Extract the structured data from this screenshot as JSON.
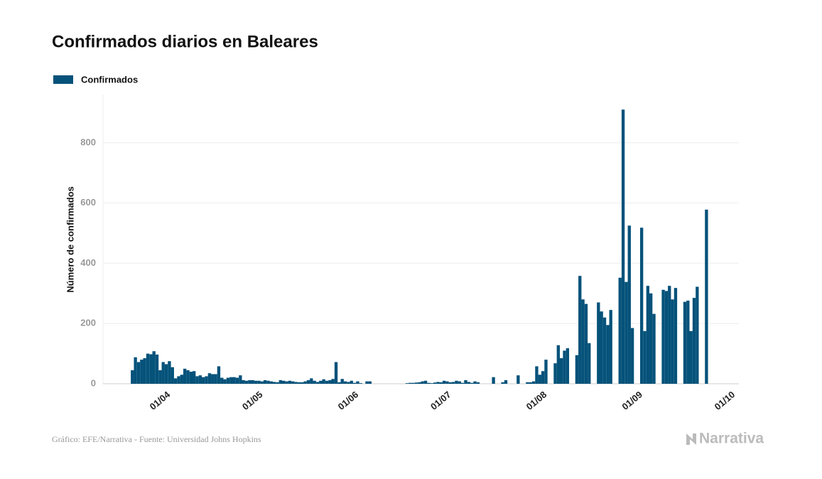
{
  "chart_data": {
    "type": "bar",
    "title": "Confirmados diarios en Baleares",
    "y_label": "Número de confirmados",
    "source": "Gráfico: EFE/Narrativa - Fuente: Universidad Johns Hopkins",
    "brand": "Narrativa",
    "categories": [
      null,
      null,
      null,
      null,
      null,
      null,
      null,
      null,
      null,
      null,
      null,
      null,
      null,
      null,
      null,
      null,
      null,
      null,
      null,
      null,
      "01/04",
      null,
      null,
      null,
      null,
      null,
      null,
      null,
      null,
      null,
      null,
      null,
      null,
      null,
      null,
      null,
      null,
      null,
      null,
      null,
      null,
      null,
      null,
      null,
      null,
      null,
      null,
      null,
      null,
      null,
      "01/05",
      null,
      null,
      null,
      null,
      null,
      null,
      null,
      null,
      null,
      null,
      null,
      null,
      null,
      null,
      null,
      null,
      null,
      null,
      null,
      null,
      null,
      null,
      null,
      null,
      null,
      null,
      null,
      null,
      null,
      null,
      "01/06",
      null,
      null,
      null,
      null,
      null,
      null,
      null,
      null,
      null,
      null,
      null,
      null,
      null,
      null,
      null,
      null,
      null,
      null,
      null,
      null,
      null,
      null,
      null,
      null,
      null,
      null,
      null,
      null,
      null,
      "01/07",
      null,
      null,
      null,
      null,
      null,
      null,
      null,
      null,
      null,
      null,
      null,
      null,
      null,
      null,
      null,
      null,
      null,
      null,
      null,
      null,
      null,
      null,
      null,
      null,
      null,
      null,
      null,
      null,
      null,
      null,
      "01/08",
      null,
      null,
      null,
      null,
      null,
      null,
      null,
      null,
      null,
      null,
      null,
      null,
      null,
      null,
      null,
      null,
      null,
      null,
      null,
      null,
      null,
      null,
      null,
      null,
      null,
      null,
      null,
      null,
      null,
      null,
      "01/09",
      null,
      null,
      null,
      null,
      null,
      null,
      null,
      null,
      null,
      null,
      null,
      null,
      null,
      null,
      null,
      null,
      null,
      null,
      null,
      null,
      null,
      null,
      null,
      null,
      null,
      null,
      null,
      null,
      null,
      "01/10",
      null,
      null
    ],
    "series": [
      {
        "name": "Confirmados",
        "color": "#05527a",
        "values": [
          0,
          0,
          0,
          0,
          0,
          0,
          0,
          0,
          0,
          45,
          88,
          72,
          80,
          85,
          100,
          98,
          108,
          97,
          45,
          72,
          65,
          75,
          55,
          18,
          25,
          30,
          50,
          45,
          40,
          42,
          25,
          28,
          22,
          25,
          35,
          32,
          32,
          58,
          20,
          15,
          20,
          22,
          22,
          20,
          28,
          12,
          10,
          12,
          12,
          10,
          10,
          8,
          12,
          10,
          8,
          6,
          5,
          12,
          10,
          8,
          10,
          8,
          6,
          5,
          5,
          8,
          12,
          18,
          10,
          6,
          10,
          15,
          10,
          12,
          16,
          72,
          5,
          16,
          8,
          6,
          10,
          3,
          8,
          2,
          0,
          8,
          8,
          0,
          0,
          0,
          0,
          0,
          0,
          0,
          0,
          0,
          0,
          0,
          2,
          3,
          3,
          4,
          5,
          8,
          10,
          3,
          2,
          4,
          6,
          5,
          10,
          8,
          5,
          6,
          10,
          8,
          3,
          12,
          6,
          3,
          8,
          5,
          0,
          0,
          0,
          0,
          22,
          0,
          0,
          5,
          12,
          0,
          0,
          0,
          28,
          0,
          0,
          5,
          5,
          8,
          58,
          30,
          42,
          80,
          0,
          0,
          68,
          128,
          85,
          110,
          118,
          0,
          0,
          95,
          358,
          280,
          265,
          135,
          0,
          0,
          270,
          240,
          220,
          195,
          245,
          0,
          0,
          352,
          910,
          338,
          525,
          185,
          0,
          0,
          518,
          175,
          325,
          300,
          232,
          0,
          0,
          312,
          308,
          325,
          280,
          318,
          0,
          0,
          272,
          276,
          175,
          285,
          322,
          0,
          0,
          578,
          0,
          0,
          0,
          0,
          0,
          0,
          0,
          0,
          0,
          0
        ]
      }
    ],
    "ylim": [
      0,
      960
    ],
    "yticks": [
      0,
      200,
      400,
      600,
      800
    ],
    "grid": true
  }
}
